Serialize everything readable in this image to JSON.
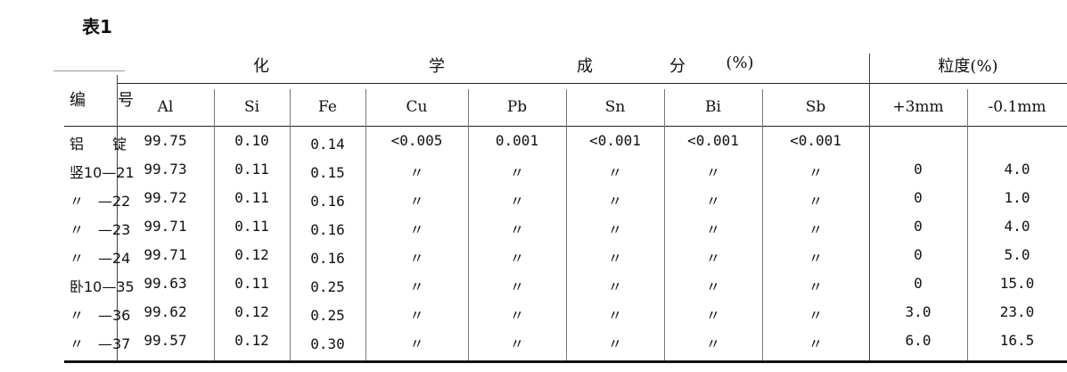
{
  "title": "表1",
  "header": {
    "id_label": "编　　号",
    "chem_group": [
      "化",
      "学",
      "成",
      "分",
      "(%)"
    ],
    "size_group": "粒度(%)",
    "columns": [
      "Al",
      "Si",
      "Fe",
      "Cu",
      "Pb",
      "Sn",
      "Bi",
      "Sb",
      "+3mm",
      "-0.1mm"
    ]
  },
  "rows": [
    {
      "id": "铝　　锭",
      "values": [
        "99.75",
        "0.10",
        "0.14",
        "<0.005",
        "0.001",
        "<0.001",
        "<0.001",
        "<0.001",
        "",
        ""
      ]
    },
    {
      "id": "竖10—21",
      "values": [
        "99.73",
        "0.11",
        "0.15",
        "〃",
        "〃",
        "〃",
        "〃",
        "〃",
        "0",
        "4.0"
      ]
    },
    {
      "id": "〃　—22",
      "values": [
        "99.72",
        "0.11",
        "0.16",
        "〃",
        "〃",
        "〃",
        "〃",
        "〃",
        "0",
        "1.0"
      ]
    },
    {
      "id": "〃　—23",
      "values": [
        "99.71",
        "0.11",
        "0.16",
        "〃",
        "〃",
        "〃",
        "〃",
        "〃",
        "0",
        "4.0"
      ]
    },
    {
      "id": "〃　—24",
      "values": [
        "99.71",
        "0.12",
        "0.16",
        "〃",
        "〃",
        "〃",
        "〃",
        "〃",
        "0",
        "5.0"
      ]
    },
    {
      "id": "卧10—35",
      "values": [
        "99.63",
        "0.11",
        "0.25",
        "〃",
        "〃",
        "〃",
        "〃",
        "〃",
        "0",
        "15.0"
      ]
    },
    {
      "id": "〃　—36",
      "values": [
        "99.62",
        "0.12",
        "0.25",
        "〃",
        "〃",
        "〃",
        "〃",
        "〃",
        "3.0",
        "23.0"
      ]
    },
    {
      "id": "〃　—37",
      "values": [
        "99.57",
        "0.12",
        "0.30",
        "〃",
        "〃",
        "〃",
        "〃",
        "〃",
        "6.0",
        "16.5"
      ]
    }
  ]
}
